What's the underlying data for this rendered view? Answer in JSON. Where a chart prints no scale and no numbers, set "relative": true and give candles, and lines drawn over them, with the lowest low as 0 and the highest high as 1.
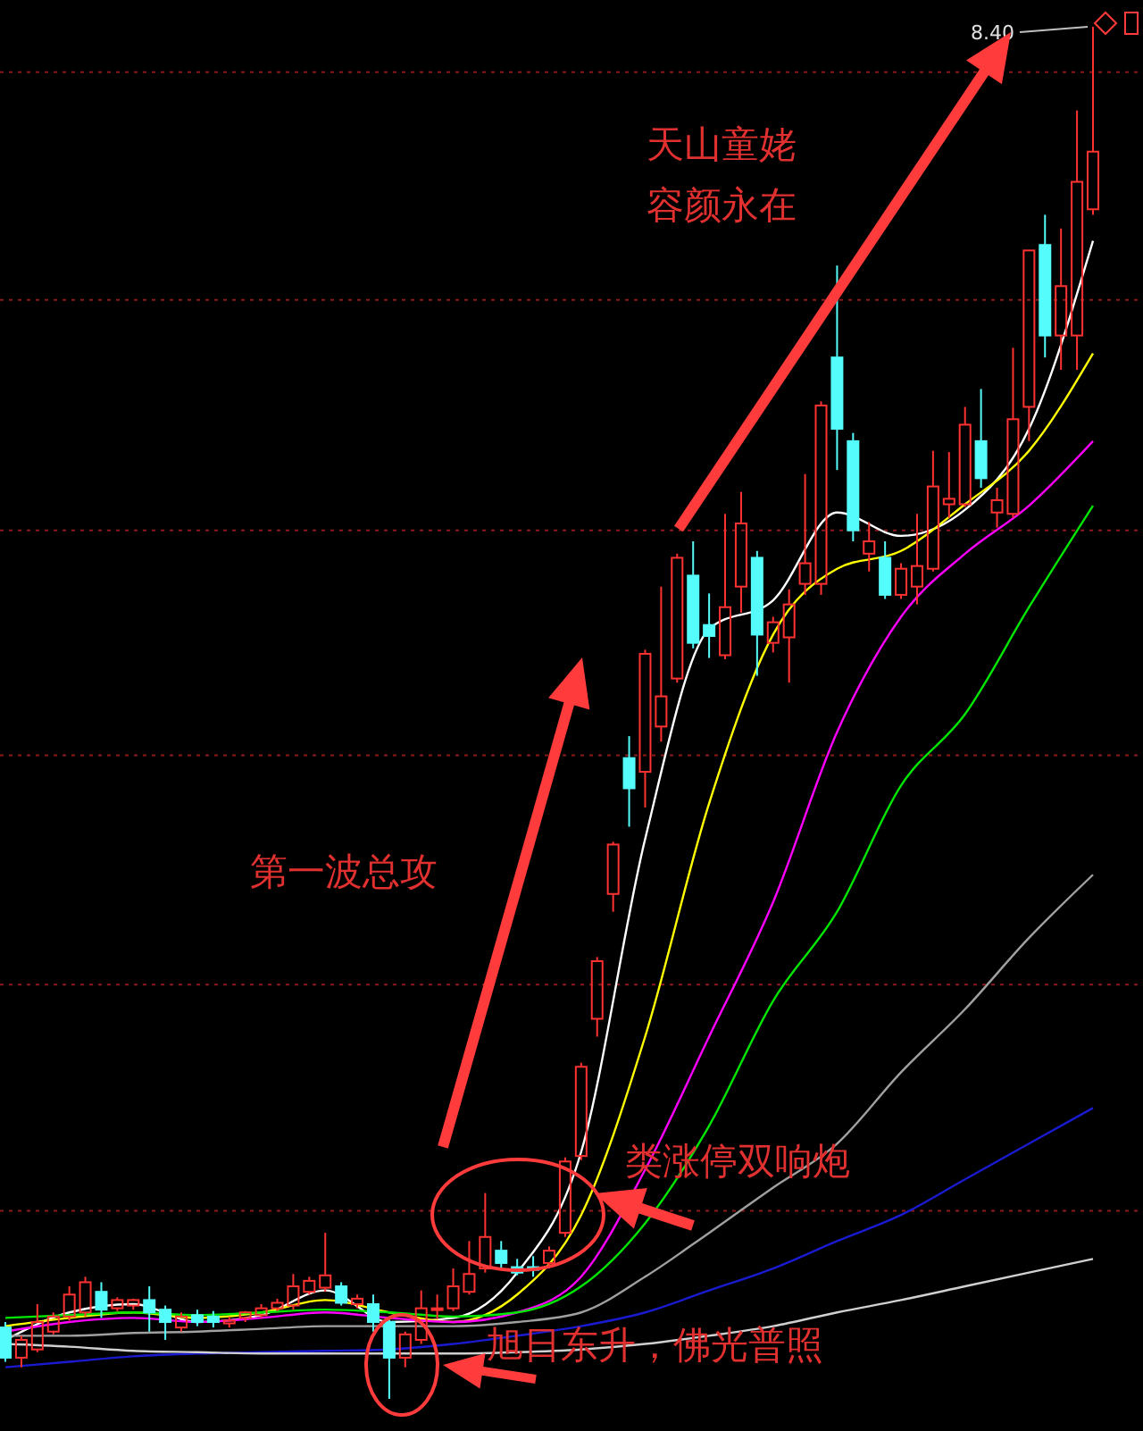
{
  "chart_data": {
    "type": "candlestick",
    "relative": true,
    "categories": [
      null,
      null,
      null,
      null,
      null,
      null,
      null,
      null,
      null,
      null,
      null,
      null,
      null,
      null,
      null,
      null,
      null,
      null,
      null,
      null,
      null,
      null,
      null,
      null,
      null,
      null,
      null,
      null,
      null,
      null,
      null,
      null,
      null,
      null,
      null,
      null,
      null,
      null,
      null,
      null,
      null,
      null,
      null,
      null,
      null,
      null,
      null,
      null,
      null,
      null,
      null,
      null,
      null,
      null,
      null,
      null,
      null,
      null,
      null,
      null,
      null,
      null,
      null,
      null,
      null,
      null,
      null,
      null,
      null
    ],
    "ohlc": [
      [
        0.052,
        0.056,
        0.027,
        0.03
      ],
      [
        0.03,
        0.046,
        0.023,
        0.043
      ],
      [
        0.036,
        0.069,
        0.034,
        0.056
      ],
      [
        0.049,
        0.063,
        0.047,
        0.06
      ],
      [
        0.06,
        0.082,
        0.057,
        0.076
      ],
      [
        0.063,
        0.089,
        0.06,
        0.085
      ],
      [
        0.078,
        0.085,
        0.059,
        0.065
      ],
      [
        0.066,
        0.074,
        0.064,
        0.072
      ],
      [
        0.068,
        0.073,
        0.065,
        0.072
      ],
      [
        0.072,
        0.082,
        0.049,
        0.063
      ],
      [
        0.065,
        0.068,
        0.043,
        0.056
      ],
      [
        0.052,
        0.063,
        0.049,
        0.06
      ],
      [
        0.061,
        0.065,
        0.053,
        0.056
      ],
      [
        0.06,
        0.064,
        0.052,
        0.056
      ],
      [
        0.055,
        0.06,
        0.052,
        0.057
      ],
      [
        0.059,
        0.064,
        0.056,
        0.063
      ],
      [
        0.061,
        0.069,
        0.059,
        0.066
      ],
      [
        0.066,
        0.073,
        0.064,
        0.07
      ],
      [
        0.068,
        0.091,
        0.065,
        0.082
      ],
      [
        0.078,
        0.089,
        0.076,
        0.086
      ],
      [
        0.081,
        0.121,
        0.078,
        0.09
      ],
      [
        0.082,
        0.085,
        0.068,
        0.07
      ],
      [
        0.069,
        0.076,
        0.066,
        0.073
      ],
      [
        0.069,
        0.076,
        0.049,
        0.056
      ],
      [
        0.056,
        0.059,
        0.0,
        0.03
      ],
      [
        0.03,
        0.049,
        0.023,
        0.047
      ],
      [
        0.043,
        0.079,
        0.04,
        0.066
      ],
      [
        0.065,
        0.076,
        0.058,
        0.066
      ],
      [
        0.066,
        0.095,
        0.064,
        0.082
      ],
      [
        0.078,
        0.115,
        0.076,
        0.091
      ],
      [
        0.095,
        0.15,
        0.092,
        0.118
      ],
      [
        0.108,
        0.115,
        0.095,
        0.099
      ],
      [
        0.096,
        0.102,
        0.09,
        0.092
      ],
      [
        0.096,
        0.104,
        0.089,
        0.094
      ],
      [
        0.099,
        0.111,
        0.095,
        0.108
      ],
      [
        0.121,
        0.176,
        0.118,
        0.173
      ],
      [
        0.177,
        0.245,
        0.174,
        0.242
      ],
      [
        0.277,
        0.322,
        0.264,
        0.319
      ],
      [
        0.368,
        0.406,
        0.355,
        0.404
      ],
      [
        0.467,
        0.483,
        0.417,
        0.445
      ],
      [
        0.457,
        0.546,
        0.431,
        0.543
      ],
      [
        0.49,
        0.592,
        0.479,
        0.512
      ],
      [
        0.525,
        0.616,
        0.522,
        0.613
      ],
      [
        0.6,
        0.625,
        0.547,
        0.551
      ],
      [
        0.564,
        0.587,
        0.54,
        0.556
      ],
      [
        0.542,
        0.645,
        0.539,
        0.577
      ],
      [
        0.592,
        0.661,
        0.573,
        0.638
      ],
      [
        0.613,
        0.618,
        0.527,
        0.557
      ],
      [
        0.551,
        0.57,
        0.544,
        0.566
      ],
      [
        0.555,
        0.59,
        0.522,
        0.579
      ],
      [
        0.594,
        0.674,
        0.586,
        0.609
      ],
      [
        0.594,
        0.727,
        0.586,
        0.724
      ],
      [
        0.759,
        0.826,
        0.677,
        0.707
      ],
      [
        0.698,
        0.704,
        0.625,
        0.633
      ],
      [
        0.616,
        0.639,
        0.603,
        0.625
      ],
      [
        0.613,
        0.625,
        0.583,
        0.586
      ],
      [
        0.586,
        0.609,
        0.583,
        0.605
      ],
      [
        0.592,
        0.645,
        0.579,
        0.607
      ],
      [
        0.605,
        0.691,
        0.603,
        0.665
      ],
      [
        0.652,
        0.69,
        0.642,
        0.656
      ],
      [
        0.652,
        0.723,
        0.65,
        0.71
      ],
      [
        0.698,
        0.736,
        0.664,
        0.671
      ],
      [
        0.646,
        0.664,
        0.635,
        0.655
      ],
      [
        0.645,
        0.766,
        0.642,
        0.714
      ],
      [
        0.723,
        0.837,
        0.698,
        0.837
      ],
      [
        0.841,
        0.863,
        0.759,
        0.775
      ],
      [
        0.775,
        0.853,
        0.75,
        0.811
      ],
      [
        0.775,
        0.939,
        0.75,
        0.887
      ],
      [
        0.867,
        1.0,
        0.863,
        0.909
      ]
    ],
    "colors": [
      "#54fcfc",
      "#ff3232",
      "#ff3232",
      "#ff3232",
      "#ff3232",
      "#ff3232",
      "#54fcfc",
      "#ff3232",
      "#ff3232",
      "#54fcfc",
      "#54fcfc",
      "#ff3232",
      "#54fcfc",
      "#54fcfc",
      "#ff3232",
      "#ff3232",
      "#ff3232",
      "#ff3232",
      "#ff3232",
      "#ff3232",
      "#ff3232",
      "#54fcfc",
      "#ff3232",
      "#54fcfc",
      "#54fcfc",
      "#ff3232",
      "#ff3232",
      "#ff3232",
      "#ff3232",
      "#ff3232",
      "#ff3232",
      "#54fcfc",
      "#54fcfc",
      "#54fcfc",
      "#ff3232",
      "#ff3232",
      "#ff3232",
      "#ff3232",
      "#ff3232",
      "#54fcfc",
      "#ff3232",
      "#ff3232",
      "#ff3232",
      "#54fcfc",
      "#54fcfc",
      "#ff3232",
      "#ff3232",
      "#54fcfc",
      "#ff3232",
      "#ff3232",
      "#ff3232",
      "#ff3232",
      "#54fcfc",
      "#54fcfc",
      "#ff3232",
      "#54fcfc",
      "#ff3232",
      "#ff3232",
      "#ff3232",
      "#ff3232",
      "#ff3232",
      "#54fcfc",
      "#ff3232",
      "#ff3232",
      "#ff3232",
      "#54fcfc",
      "#ff3232",
      "#ff3232",
      "#ff3232"
    ],
    "series": [
      {
        "type": "line",
        "color": "#ffffff",
        "values": [
          0.043,
          null,
          null,
          null,
          0.063,
          null,
          null,
          null,
          0.069,
          null,
          null,
          null,
          0.056,
          null,
          null,
          null,
          0.061,
          null,
          null,
          null,
          0.079,
          null,
          null,
          null,
          0.056,
          null,
          null,
          null,
          0.059,
          null,
          null,
          null,
          0.092,
          null,
          null,
          null,
          0.18,
          null,
          null,
          null,
          0.408,
          null,
          null,
          null,
          0.561,
          null,
          null,
          null,
          0.582,
          null,
          null,
          null,
          0.646,
          null,
          null,
          null,
          0.629,
          null,
          null,
          null,
          0.648,
          null,
          null,
          null,
          0.707,
          null,
          null,
          null,
          0.844
        ]
      },
      {
        "type": "line",
        "color": "#ffff00",
        "values": [
          0.053,
          null,
          null,
          null,
          0.059,
          null,
          null,
          null,
          0.063,
          null,
          null,
          null,
          0.059,
          null,
          null,
          null,
          0.063,
          null,
          null,
          null,
          0.072,
          null,
          null,
          null,
          0.063,
          null,
          null,
          null,
          0.056,
          null,
          null,
          null,
          0.076,
          null,
          null,
          null,
          0.134,
          null,
          null,
          null,
          0.264,
          null,
          null,
          null,
          0.434,
          null,
          null,
          null,
          0.557,
          null,
          null,
          null,
          0.605,
          null,
          null,
          null,
          0.618,
          null,
          null,
          null,
          0.652,
          null,
          null,
          null,
          0.691,
          null,
          null,
          null,
          0.762
        ]
      },
      {
        "type": "line",
        "color": "#ff00ff",
        "values": [
          0.049,
          null,
          null,
          null,
          0.056,
          null,
          null,
          null,
          0.059,
          null,
          null,
          null,
          0.056,
          null,
          null,
          null,
          0.059,
          null,
          null,
          null,
          0.063,
          null,
          null,
          null,
          0.059,
          null,
          null,
          null,
          0.056,
          null,
          null,
          null,
          0.063,
          null,
          null,
          null,
          0.089,
          null,
          null,
          null,
          0.167,
          null,
          null,
          null,
          0.264,
          null,
          null,
          null,
          0.362,
          null,
          null,
          null,
          0.486,
          null,
          null,
          null,
          0.57,
          null,
          null,
          null,
          0.616,
          null,
          null,
          null,
          0.651,
          null,
          null,
          null,
          0.698
        ]
      },
      {
        "type": "line",
        "color": "#00e600",
        "values": [
          0.059,
          null,
          null,
          null,
          0.061,
          null,
          null,
          null,
          0.063,
          null,
          null,
          null,
          0.061,
          null,
          null,
          null,
          0.063,
          null,
          null,
          null,
          0.065,
          null,
          null,
          null,
          0.063,
          null,
          null,
          null,
          0.06,
          null,
          null,
          null,
          0.063,
          null,
          null,
          null,
          0.082,
          null,
          null,
          null,
          0.128,
          null,
          null,
          null,
          0.199,
          null,
          null,
          null,
          0.29,
          null,
          null,
          null,
          0.355,
          null,
          null,
          null,
          0.447,
          null,
          null,
          null,
          0.499,
          null,
          null,
          null,
          0.577,
          null,
          null,
          null,
          0.651
        ]
      },
      {
        "type": "line",
        "color": "#a0a0a0",
        "values": [
          0.046,
          null,
          null,
          null,
          0.046,
          null,
          null,
          null,
          0.048,
          null,
          null,
          null,
          0.049,
          null,
          null,
          null,
          0.051,
          null,
          null,
          null,
          0.053,
          null,
          null,
          null,
          0.053,
          null,
          null,
          null,
          0.053,
          null,
          null,
          null,
          0.056,
          null,
          null,
          null,
          0.063,
          null,
          null,
          null,
          0.089,
          null,
          null,
          null,
          0.121,
          null,
          null,
          null,
          0.154,
          null,
          null,
          null,
          0.186,
          null,
          null,
          null,
          0.238,
          null,
          null,
          null,
          0.284,
          null,
          null,
          null,
          0.336,
          null,
          null,
          null,
          0.382
        ]
      },
      {
        "type": "line",
        "color": "#1a1ad0",
        "values": [
          0.023,
          null,
          null,
          null,
          0.027,
          null,
          null,
          null,
          0.031,
          null,
          null,
          null,
          0.033,
          null,
          null,
          null,
          0.034,
          null,
          null,
          null,
          0.035,
          null,
          null,
          null,
          0.036,
          null,
          null,
          null,
          0.04,
          null,
          null,
          null,
          0.046,
          null,
          null,
          null,
          0.053,
          null,
          null,
          null,
          0.063,
          null,
          null,
          null,
          0.079,
          null,
          null,
          null,
          0.095,
          null,
          null,
          null,
          0.115,
          null,
          null,
          null,
          0.134,
          null,
          null,
          null,
          0.16,
          null,
          null,
          null,
          0.186,
          null,
          null,
          null,
          0.212
        ]
      },
      {
        "type": "line",
        "color": "#d0d0d0",
        "values": [
          0.04,
          null,
          null,
          null,
          0.038,
          null,
          null,
          null,
          0.035,
          null,
          null,
          null,
          0.034,
          null,
          null,
          null,
          0.033,
          null,
          null,
          null,
          0.033,
          null,
          null,
          null,
          0.033,
          null,
          null,
          null,
          0.033,
          null,
          null,
          null,
          0.034,
          null,
          null,
          null,
          0.036,
          null,
          null,
          null,
          0.04,
          null,
          null,
          null,
          0.046,
          null,
          null,
          null,
          0.053,
          null,
          null,
          null,
          0.063,
          null,
          null,
          null,
          0.072,
          null,
          null,
          null,
          0.082,
          null,
          null,
          null,
          0.092,
          null,
          null,
          null,
          0.102
        ]
      }
    ],
    "ref_lines": [
      {
        "axis": "y",
        "value": 0.967,
        "color": "#8b1a1a",
        "line_style": "dotted"
      },
      {
        "axis": "y",
        "value": 0.801,
        "color": "#8b1a1a",
        "line_style": "dotted"
      },
      {
        "axis": "y",
        "value": 0.633,
        "color": "#8b1a1a",
        "line_style": "dotted"
      },
      {
        "axis": "y",
        "value": 0.469,
        "color": "#8b1a1a",
        "line_style": "dotted"
      },
      {
        "axis": "y",
        "value": 0.302,
        "color": "#8b1a1a",
        "line_style": "dotted"
      },
      {
        "axis": "y",
        "value": 0.137,
        "color": "#8b1a1a",
        "line_style": "dotted"
      }
    ],
    "annotations": [
      "8.40",
      "天山童姥",
      "容颜永在",
      "第一波总攻",
      "类涨停双响炮",
      "旭日东升，佛光普照"
    ]
  }
}
